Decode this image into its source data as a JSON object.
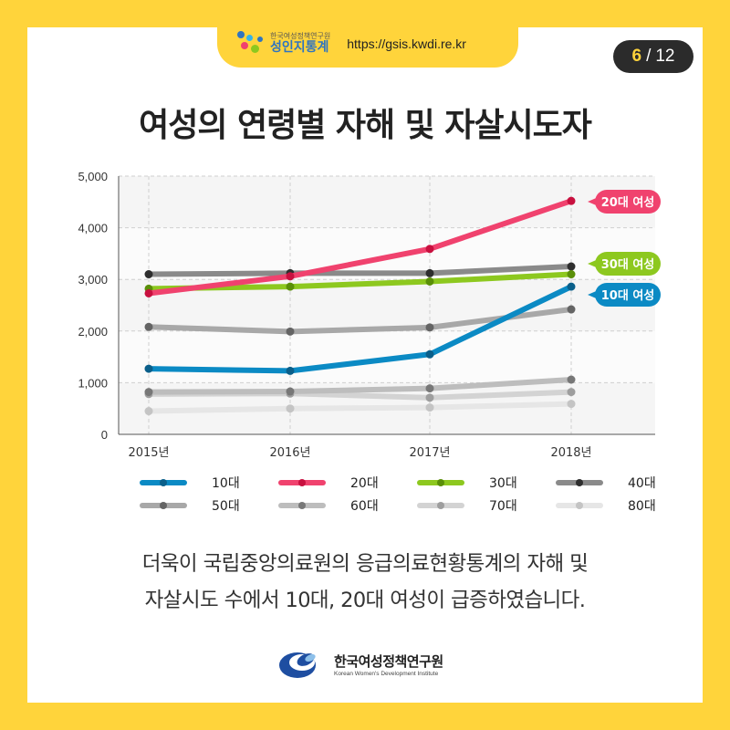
{
  "header": {
    "org_small": "한국여성정책연구원",
    "brand": "성인지통계",
    "url": "https://gsis.kwdi.re.kr"
  },
  "page": {
    "current": "6",
    "separator": "/",
    "total": "12"
  },
  "title": "여성의 연령별 자해 및 자살시도자",
  "caption": {
    "line1": "더욱이 국립중앙의료원의 응급의료현황통계의 자해 및",
    "line2": "자살시도 수에서 10대, 20대 여성이 급증하였습니다."
  },
  "footer": {
    "org_name": "한국여성정책연구원",
    "org_en": "Korean Women's Development Institute"
  },
  "colors": {
    "background": "#ffd43b",
    "card": "#ffffff",
    "brand_blue": "#2f74c0"
  },
  "chart_data": {
    "type": "line",
    "title": "여성의 연령별 자해 및 자살시도자",
    "x": [
      "2015년",
      "2016년",
      "2017년",
      "2018년"
    ],
    "ylim": [
      0,
      5000
    ],
    "yticks": [
      "0",
      "1,000",
      "2,000",
      "3,000",
      "4,000",
      "5,000"
    ],
    "ytick_values": [
      0,
      1000,
      2000,
      3000,
      4000,
      5000
    ],
    "grid": true,
    "legend_position": "bottom",
    "series": [
      {
        "name": "10대",
        "color": "#0b8ac4",
        "dot": "#0a5f8a",
        "values": [
          1270,
          1230,
          1550,
          2860
        ]
      },
      {
        "name": "20대",
        "color": "#f0426e",
        "dot": "#c8103f",
        "values": [
          2730,
          3060,
          3590,
          4520
        ]
      },
      {
        "name": "30대",
        "color": "#8dc81f",
        "dot": "#5a8f08",
        "values": [
          2820,
          2860,
          2960,
          3100
        ]
      },
      {
        "name": "40대",
        "color": "#8a8a8a",
        "dot": "#2e2e2e",
        "values": [
          3100,
          3120,
          3120,
          3250
        ]
      },
      {
        "name": "50대",
        "color": "#a8a8a8",
        "dot": "#646464",
        "values": [
          2080,
          1990,
          2070,
          2420
        ]
      },
      {
        "name": "60대",
        "color": "#bdbdbd",
        "dot": "#777777",
        "values": [
          820,
          830,
          890,
          1060
        ]
      },
      {
        "name": "70대",
        "color": "#d3d3d3",
        "dot": "#9e9e9e",
        "values": [
          780,
          790,
          710,
          820
        ]
      },
      {
        "name": "80대",
        "color": "#e6e6e6",
        "dot": "#c4c4c4",
        "values": [
          450,
          500,
          520,
          590
        ]
      }
    ],
    "annotations": [
      {
        "text": "20대 여성",
        "series": "20대",
        "color": "#f0426e"
      },
      {
        "text": "30대 여성",
        "series": "30대",
        "color": "#8dc81f"
      },
      {
        "text": "10대 여성",
        "series": "10대",
        "color": "#0b8ac4"
      }
    ]
  }
}
